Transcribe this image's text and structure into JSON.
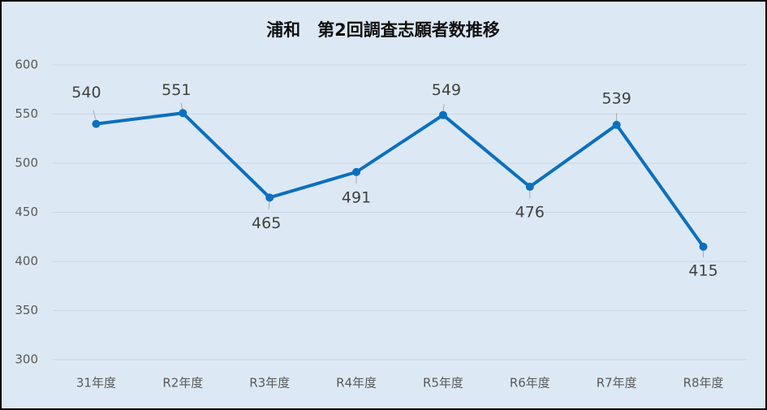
{
  "chart_data": {
    "type": "line",
    "title": "浦和　第2回調査志願者数推移",
    "categories": [
      "31年度",
      "R2年度",
      "R3年度",
      "R4年度",
      "R5年度",
      "R6年度",
      "R7年度",
      "R8年度"
    ],
    "values": [
      540,
      551,
      465,
      491,
      549,
      476,
      539,
      415
    ],
    "color": "#0b6fbf",
    "ylim": [
      300,
      600
    ],
    "yticks": [
      300,
      350,
      400,
      450,
      500,
      550,
      600
    ],
    "grid": true
  }
}
